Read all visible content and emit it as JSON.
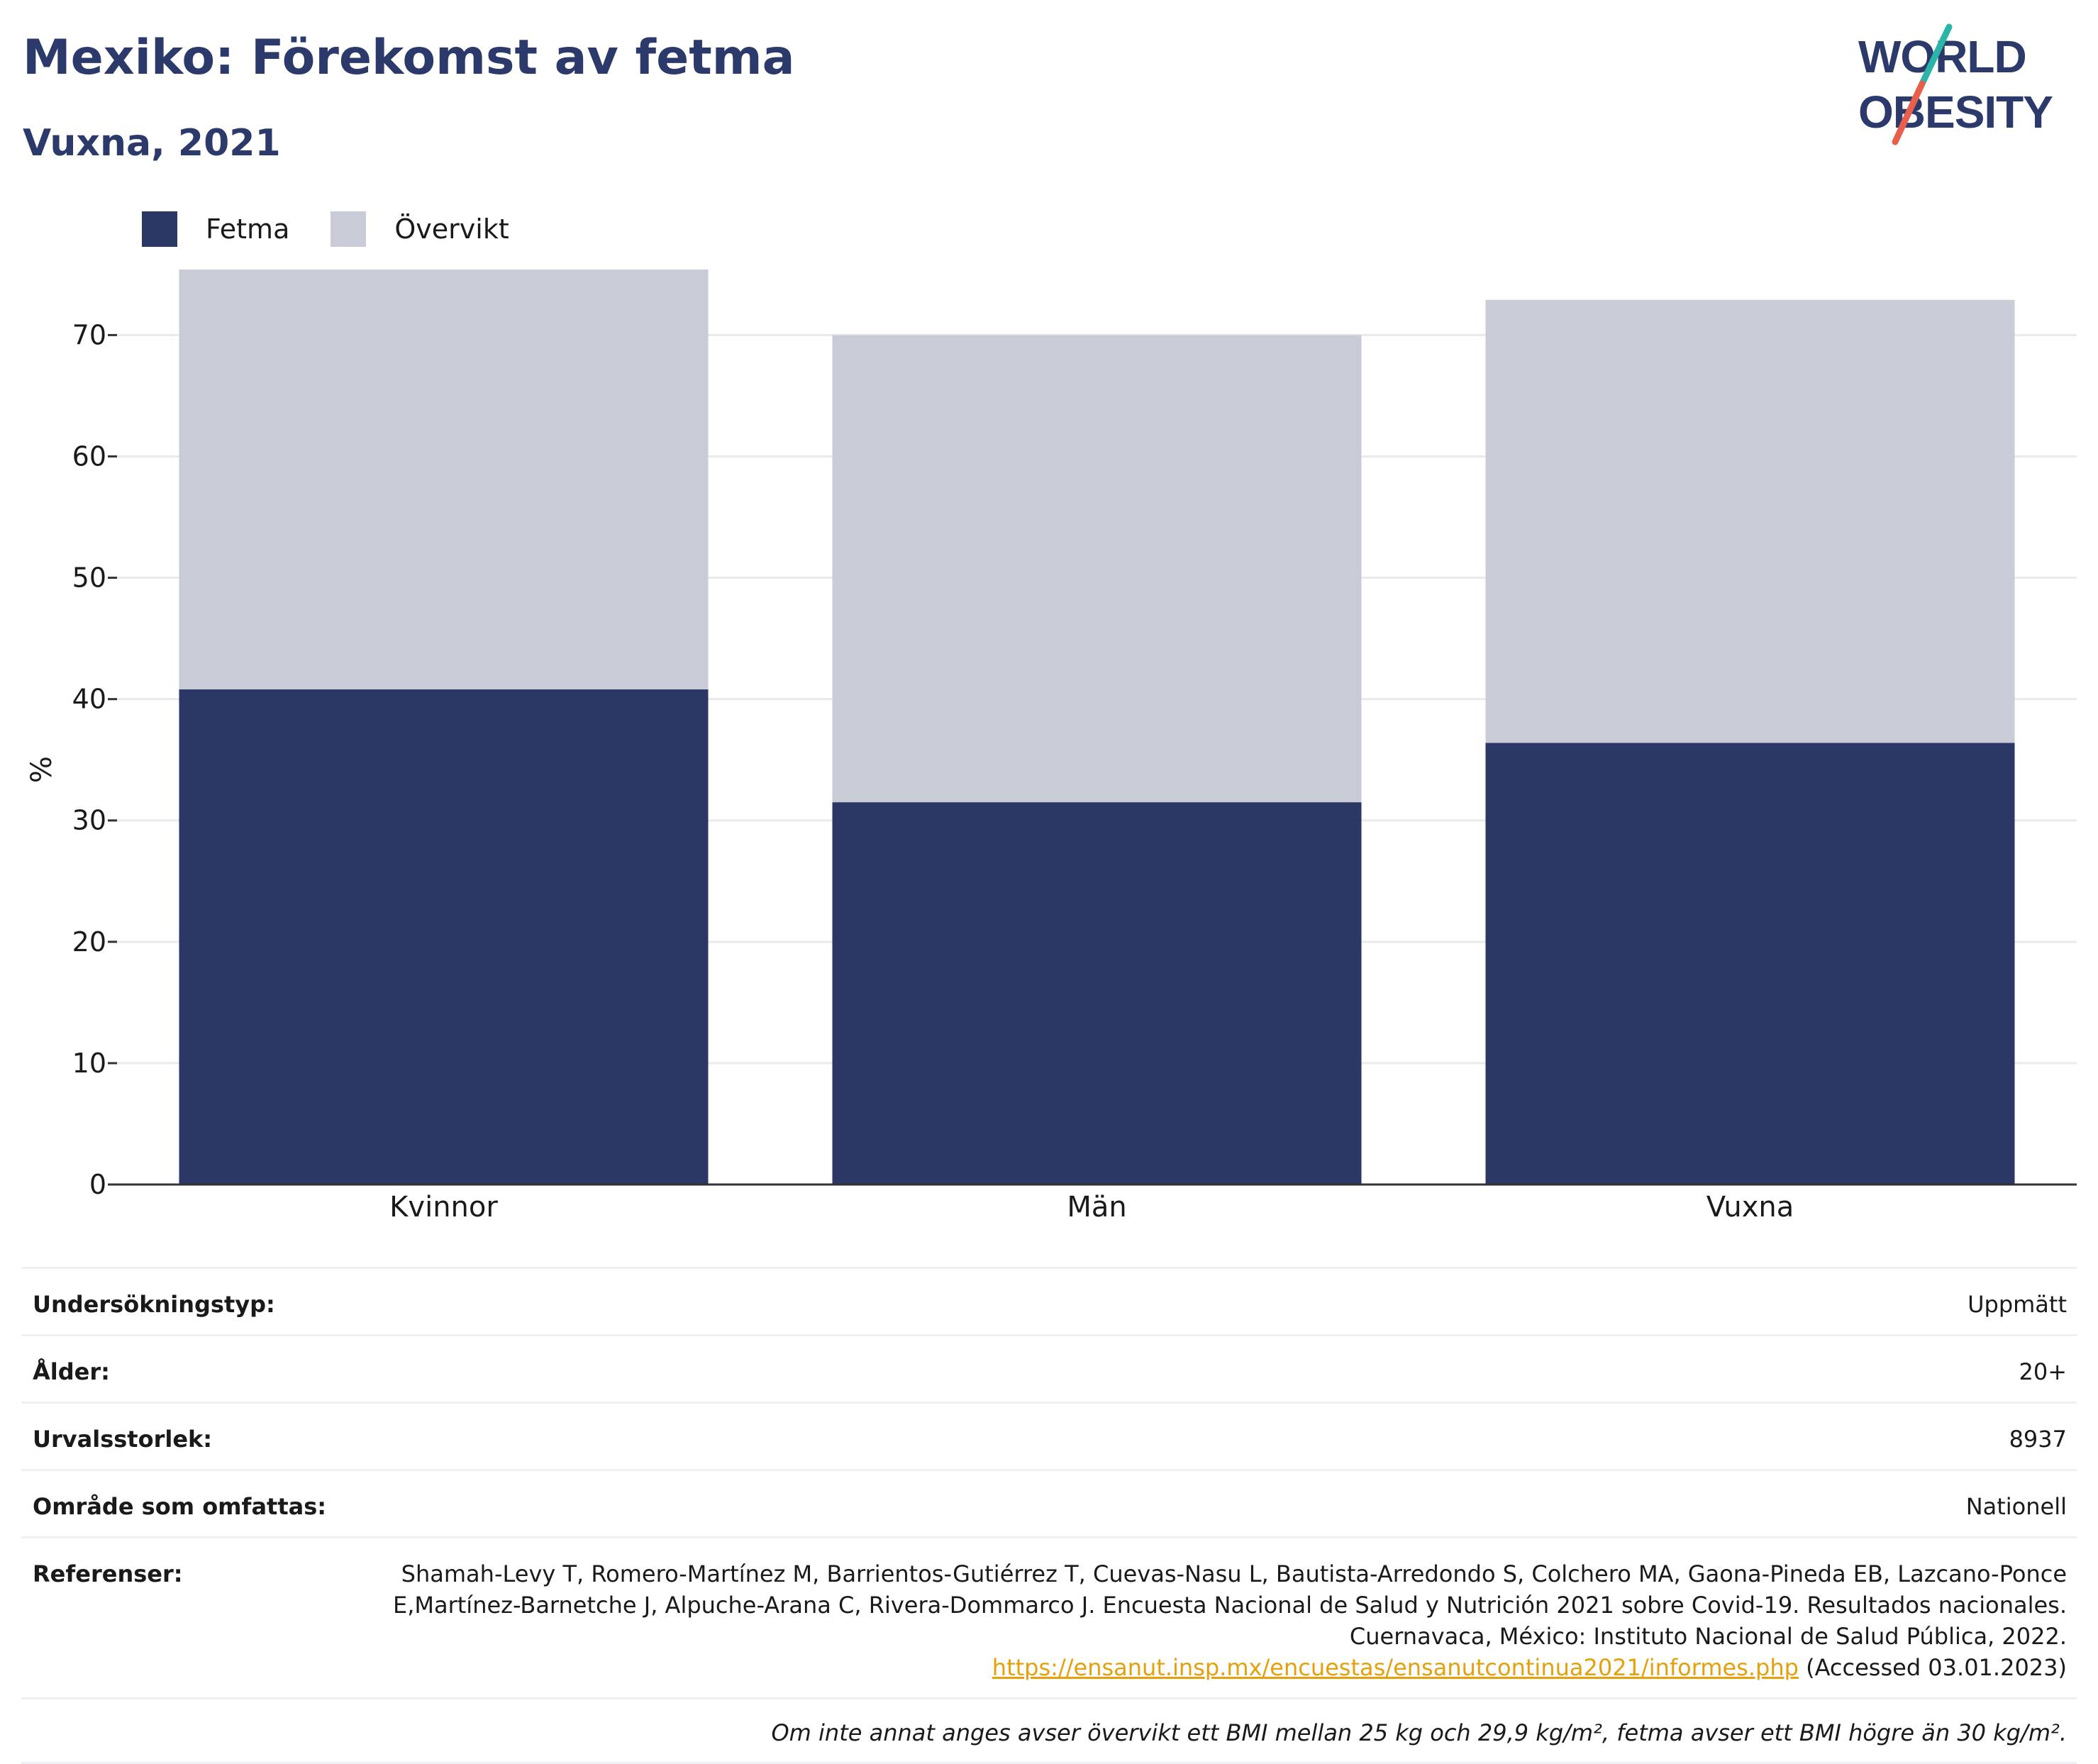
{
  "header": {
    "title": "Mexiko: Förekomst av fetma",
    "subtitle": "Vuxna, 2021",
    "logo": {
      "line1": "WORLD",
      "line2": "OBESITY"
    }
  },
  "legend": {
    "items": [
      {
        "label": "Fetma",
        "color": "#2b3765"
      },
      {
        "label": "Övervikt",
        "color": "#c9cbd6"
      }
    ]
  },
  "chart_data": {
    "type": "bar",
    "stacked": true,
    "categories": [
      "Kvinnor",
      "Män",
      "Vuxna"
    ],
    "series": [
      {
        "name": "Fetma",
        "color": "#2b3765",
        "values": [
          40.8,
          31.5,
          36.4
        ]
      },
      {
        "name": "Övervikt",
        "color": "#c9cbd6",
        "values": [
          34.6,
          38.5,
          36.5
        ]
      }
    ],
    "ylabel": "%",
    "ylim": [
      0,
      75.4
    ],
    "yticks": [
      0,
      10,
      20,
      30,
      40,
      50,
      60,
      70
    ],
    "grid": true,
    "legend_position": "top-left"
  },
  "info": {
    "rows": [
      {
        "key": "Undersökningstyp:",
        "value": "Uppmätt"
      },
      {
        "key": "Ålder:",
        "value": "20+"
      },
      {
        "key": "Urvalsstorlek:",
        "value": "8937"
      },
      {
        "key": "Område som omfattas:",
        "value": "Nationell"
      }
    ],
    "references": {
      "key": "Referenser:",
      "text": "Shamah-Levy T, Romero-Martínez M, Barrientos-Gutiérrez T, Cuevas-Nasu L, Bautista-Arredondo S, Colchero MA, Gaona-Pineda EB, Lazcano-Ponce E,Martínez-Barnetche J, Alpuche-Arana C, Rivera-Dommarco J. Encuesta Nacional de Salud y Nutrición 2021 sobre Covid-19. Resultados nacionales. Cuernavaca, México: Instituto Nacional de Salud Pública, 2022.",
      "link": "https://ensanut.insp.mx/encuestas/ensanutcontinua2021/informes.php",
      "accessed": "(Accessed 03.01.2023)"
    },
    "note": "Om inte annat anges avser övervikt ett BMI mellan 25 kg och 29,9 kg/m², fetma avser ett BMI högre än 30 kg/m²."
  }
}
